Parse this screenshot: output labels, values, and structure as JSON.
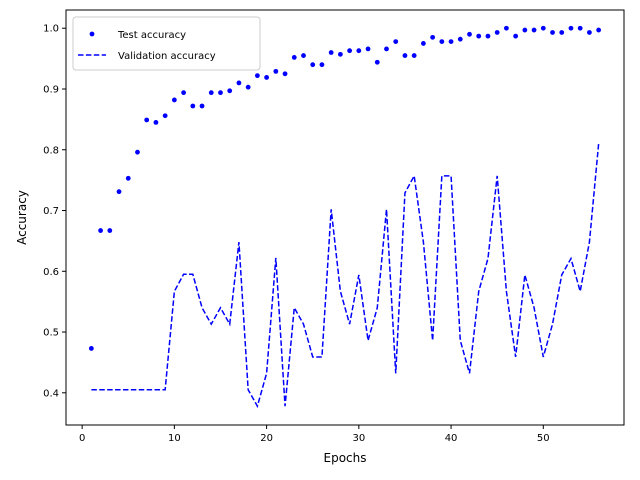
{
  "chart_data": {
    "type": "line",
    "xlabel": "Epochs",
    "ylabel": "Accuracy",
    "xlim": [
      -1.75,
      58.75
    ],
    "ylim": [
      0.347,
      1.03
    ],
    "xticks": [
      0,
      10,
      20,
      30,
      40,
      50
    ],
    "yticks": [
      0.4,
      0.5,
      0.6,
      0.7,
      0.8,
      0.9,
      1.0
    ],
    "ytick_labels": [
      "0.4",
      "0.5",
      "0.6",
      "0.7",
      "0.8",
      "0.9",
      "1.0"
    ],
    "grid": false,
    "legend_position": "top-left",
    "x": [
      1,
      2,
      3,
      4,
      5,
      6,
      7,
      8,
      9,
      10,
      11,
      12,
      13,
      14,
      15,
      16,
      17,
      18,
      19,
      20,
      21,
      22,
      23,
      24,
      25,
      26,
      27,
      28,
      29,
      30,
      31,
      32,
      33,
      34,
      35,
      36,
      37,
      38,
      39,
      40,
      41,
      42,
      43,
      44,
      45,
      46,
      47,
      48,
      49,
      50,
      51,
      52,
      53,
      54,
      55,
      56
    ],
    "series": [
      {
        "name": "Test accuracy",
        "style": "dots",
        "color": "#0000ff",
        "values": [
          0.473,
          0.667,
          0.667,
          0.731,
          0.753,
          0.796,
          0.849,
          0.845,
          0.856,
          0.882,
          0.894,
          0.872,
          0.872,
          0.894,
          0.894,
          0.897,
          0.91,
          0.903,
          0.922,
          0.919,
          0.929,
          0.925,
          0.952,
          0.955,
          0.94,
          0.94,
          0.96,
          0.957,
          0.963,
          0.963,
          0.966,
          0.944,
          0.966,
          0.978,
          0.955,
          0.955,
          0.975,
          0.985,
          0.978,
          0.978,
          0.982,
          0.99,
          0.987,
          0.987,
          0.993,
          1.0,
          0.987,
          0.997,
          0.997,
          1.0,
          0.993,
          0.993,
          1.0,
          1.0,
          0.993,
          0.997
        ]
      },
      {
        "name": "Validation accuracy",
        "style": "dashed",
        "color": "#0000ff",
        "values": [
          0.405,
          0.405,
          0.405,
          0.405,
          0.405,
          0.405,
          0.405,
          0.405,
          0.405,
          0.567,
          0.595,
          0.595,
          0.54,
          0.513,
          0.54,
          0.513,
          0.648,
          0.405,
          0.378,
          0.432,
          0.622,
          0.378,
          0.54,
          0.513,
          0.459,
          0.459,
          0.702,
          0.567,
          0.513,
          0.594,
          0.486,
          0.54,
          0.702,
          0.432,
          0.729,
          0.757,
          0.648,
          0.486,
          0.757,
          0.757,
          0.486,
          0.432,
          0.567,
          0.621,
          0.757,
          0.567,
          0.459,
          0.594,
          0.54,
          0.459,
          0.513,
          0.594,
          0.621,
          0.567,
          0.648,
          0.81
        ]
      }
    ]
  }
}
